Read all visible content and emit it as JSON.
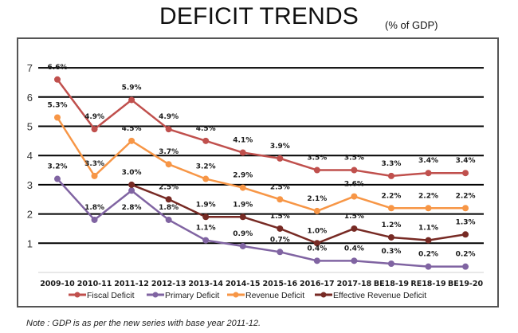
{
  "chart_data": {
    "type": "line",
    "title": "DEFICIT TRENDS",
    "subtitle": "(% of GDP)",
    "xlabel": "",
    "ylabel": "",
    "ylim": [
      0,
      7
    ],
    "yticks": [
      1,
      2,
      3,
      4,
      5,
      6,
      7
    ],
    "grid": true,
    "legend_position": "bottom",
    "categories": [
      "2009-10",
      "2010-11",
      "2011-12",
      "2012-13",
      "2013-14",
      "2014-15",
      "2015-16",
      "2016-17",
      "2017-18",
      "BE18-19",
      "RE18-19",
      "BE19-20"
    ],
    "series": [
      {
        "name": "Fiscal Deficit",
        "color": "#C0504D",
        "values": [
          6.6,
          4.9,
          5.9,
          4.9,
          4.5,
          4.1,
          3.9,
          3.5,
          3.5,
          3.3,
          3.4,
          3.4
        ],
        "labels": [
          "6.6%",
          "4.9%",
          "5.9%",
          "4.9%",
          "4.5%",
          "4.1%",
          "3.9%",
          "3.5%",
          "3.5%",
          "3.3%",
          "3.4%",
          "3.4%"
        ]
      },
      {
        "name": "Primary Deficit",
        "color": "#8064A2",
        "values": [
          3.2,
          1.8,
          2.8,
          1.8,
          1.1,
          0.9,
          0.7,
          0.4,
          0.4,
          0.3,
          0.2,
          0.2
        ],
        "labels": [
          "3.2%",
          "1.8%",
          "2.8%",
          "1.8%",
          "1.1%",
          "0.9%",
          "0.7%",
          "0.4%",
          "0.4%",
          "0.3%",
          "0.2%",
          "0.2%"
        ]
      },
      {
        "name": "Revenue Deficit",
        "color": "#F79646",
        "values": [
          5.3,
          3.3,
          4.5,
          3.7,
          3.2,
          2.9,
          2.5,
          2.1,
          2.6,
          2.2,
          2.2,
          2.2
        ],
        "labels": [
          "5.3%",
          "3.3%",
          "4.5%",
          "3.7%",
          "3.2%",
          "2.9%",
          "2.5%",
          "2.1%",
          "2.6%",
          "2.2%",
          "2.2%",
          "2.2%"
        ]
      },
      {
        "name": "Effective Revenue Deficit",
        "color": "#772A24",
        "values": [
          null,
          null,
          3.0,
          2.5,
          1.9,
          1.9,
          1.5,
          1.0,
          1.5,
          1.2,
          1.1,
          1.3
        ],
        "labels": [
          null,
          null,
          "3.0%",
          "2.5%",
          "1.9%",
          "1.9%",
          "1.5%",
          "1.0%",
          "1.5%",
          "1.2%",
          "1.1%",
          "1.3%"
        ]
      }
    ]
  },
  "note": "Note : GDP is as per the new series with base year 2011-12."
}
